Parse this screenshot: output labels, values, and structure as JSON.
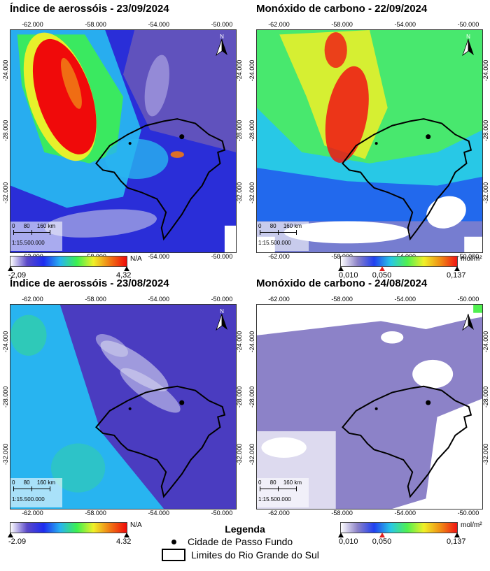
{
  "panels": [
    {
      "title": "Índice de aerossóis - 23/09/2024",
      "scale_text": "1:15.500.000",
      "scale_marks": [
        "0",
        "80",
        "160 km"
      ],
      "colorbar": {
        "unit": "N/A",
        "min": "-2,09",
        "max": "4,32",
        "mid": ""
      },
      "scene": "aer-sep"
    },
    {
      "title": "Monóxido de carbono - 22/09/2024",
      "scale_text": "1:15.500.000",
      "scale_marks": [
        "0",
        "80",
        "160 km"
      ],
      "colorbar": {
        "unit": "mol/m²",
        "min": "0,010",
        "max": "0,137",
        "mid": "0,050"
      },
      "scene": "co-sep"
    },
    {
      "title": "Índice de aerossóis - 23/08/2024",
      "scale_text": "1:15.500.000",
      "scale_marks": [
        "0",
        "80",
        "160 km"
      ],
      "colorbar": {
        "unit": "N/A",
        "min": "-2.09",
        "max": "4.32",
        "mid": ""
      },
      "scene": "aer-aug"
    },
    {
      "title": "Monóxido de carbono - 24/08/2024",
      "scale_text": "1:15.500.000",
      "scale_marks": [
        "0",
        "80",
        "160 km"
      ],
      "colorbar": {
        "unit": "mol/m²",
        "min": "0,010",
        "max": "0,137",
        "mid": "0,050"
      },
      "scene": "co-aug"
    }
  ],
  "axes": {
    "x_ticks": [
      "-62.000",
      "-58.000",
      "-54.000",
      "-50.000"
    ],
    "y_ticks": [
      "-24.000",
      "-28.000",
      "-32.000"
    ]
  },
  "north_label": "N",
  "legend": {
    "title": "Legenda",
    "point_label": "Cidade de Passo Fundo",
    "boundary_label": "Limites do Rio Grande do Sul"
  },
  "colors": {
    "aer_ramp": [
      "#ffffff",
      "#5a48c8",
      "#1e2cf0",
      "#28b4f0",
      "#3cf050",
      "#f0f028",
      "#f07814",
      "#f00a0a"
    ],
    "co_ramp": [
      "#ffffff",
      "#8c82c8",
      "#2040f0",
      "#28c8e6",
      "#50f050",
      "#f0f028",
      "#f08c14",
      "#f01414"
    ],
    "boundary": "#000000"
  }
}
